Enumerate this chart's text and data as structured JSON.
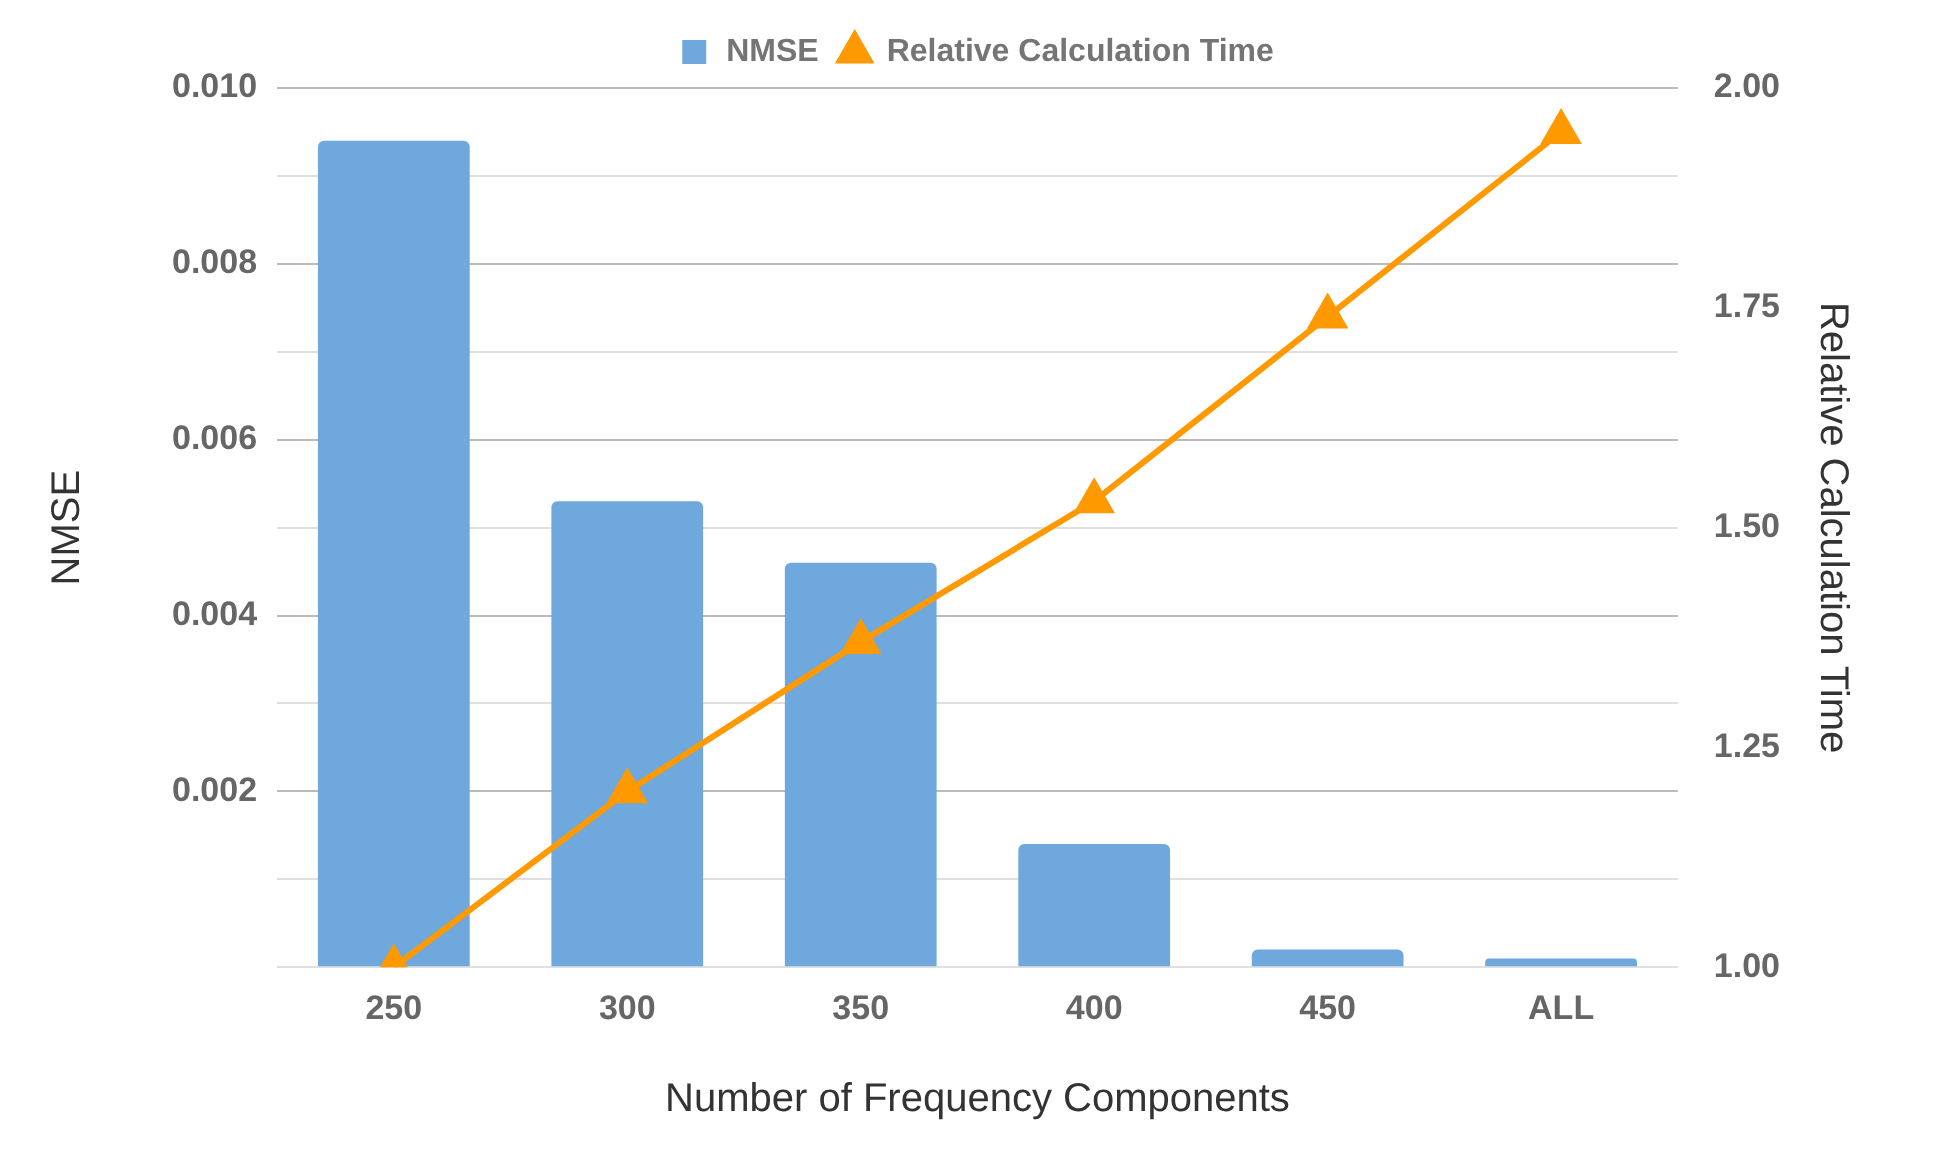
{
  "chart_data": {
    "type": "bar",
    "xlabel": "Number of Frequency Components",
    "ylabel": "NMSE",
    "y2label": "Relative Calculation Time",
    "categories": [
      "250",
      "300",
      "350",
      "400",
      "450",
      "ALL"
    ],
    "series": [
      {
        "name": "NMSE",
        "color": "#6fa8dc",
        "values": [
          0.0094,
          0.0053,
          0.0046,
          0.0014,
          0.0002,
          0.0001
        ]
      },
      {
        "name": "Relative Calculation Time",
        "type": "line",
        "axis": "y2",
        "color": "#ff9900",
        "marker": "triangle",
        "values": [
          1.0,
          1.2,
          1.37,
          1.53,
          1.74,
          1.95
        ]
      }
    ],
    "ylim": [
      0,
      0.01
    ],
    "yticks": [
      {
        "value": 0,
        "label": null
      },
      {
        "value": 0.001,
        "label": null
      },
      {
        "value": 0.002,
        "label": "0.002"
      },
      {
        "value": 0.003,
        "label": null
      },
      {
        "value": 0.004,
        "label": "0.004"
      },
      {
        "value": 0.005,
        "label": null
      },
      {
        "value": 0.006,
        "label": "0.006"
      },
      {
        "value": 0.007,
        "label": null
      },
      {
        "value": 0.008,
        "label": "0.008"
      },
      {
        "value": 0.009,
        "label": null
      },
      {
        "value": 0.01,
        "label": "0.010"
      }
    ],
    "y2lim": [
      1,
      2
    ],
    "y2ticks": [
      {
        "value": 1,
        "label": "1.00"
      },
      {
        "value": 1.25,
        "label": "1.25"
      },
      {
        "value": 1.5,
        "label": "1.50"
      },
      {
        "value": 1.75,
        "label": "1.75"
      },
      {
        "value": 2,
        "label": "2.00"
      }
    ],
    "grid": "y",
    "legend": "top"
  }
}
